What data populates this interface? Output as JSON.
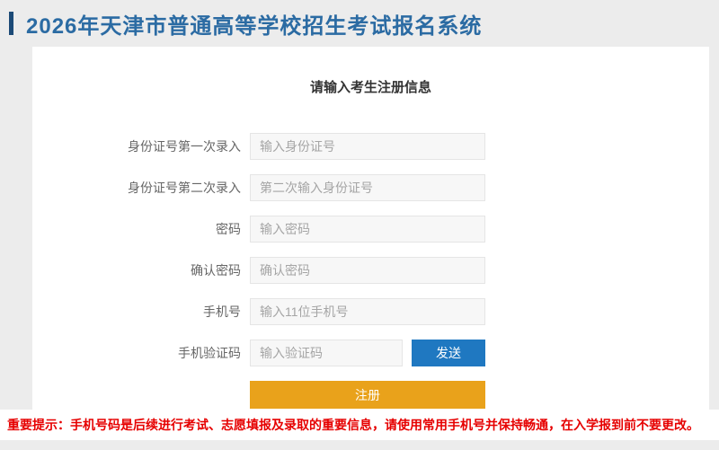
{
  "header": {
    "title": "2026年天津市普通高等学校招生考试报名系统"
  },
  "form": {
    "heading": "请输入考生注册信息",
    "fields": [
      {
        "label": "身份证号第一次录入",
        "placeholder": "输入身份证号",
        "value": ""
      },
      {
        "label": "身份证号第二次录入",
        "placeholder": "第二次输入身份证号",
        "value": ""
      },
      {
        "label": "密码",
        "placeholder": "输入密码",
        "value": ""
      },
      {
        "label": "确认密码",
        "placeholder": "确认密码",
        "value": ""
      },
      {
        "label": "手机号",
        "placeholder": "输入11位手机号",
        "value": ""
      },
      {
        "label": "手机验证码",
        "placeholder": "输入验证码",
        "value": ""
      }
    ],
    "send_button_label": "发送",
    "register_button_label": "注册"
  },
  "warning": {
    "text": "重要提示：手机号码是后续进行考试、志愿填报及录取的重要信息，请使用常用手机号并保持畅通，在入学报到前不要更改。"
  },
  "colors": {
    "page_background": "#ececec",
    "title_blue": "#2b6ba3",
    "accent_bar_blue": "#1c4a77",
    "send_button_blue": "#1f78c1",
    "register_button_orange": "#e9a21b",
    "warning_red": "#e60000"
  }
}
